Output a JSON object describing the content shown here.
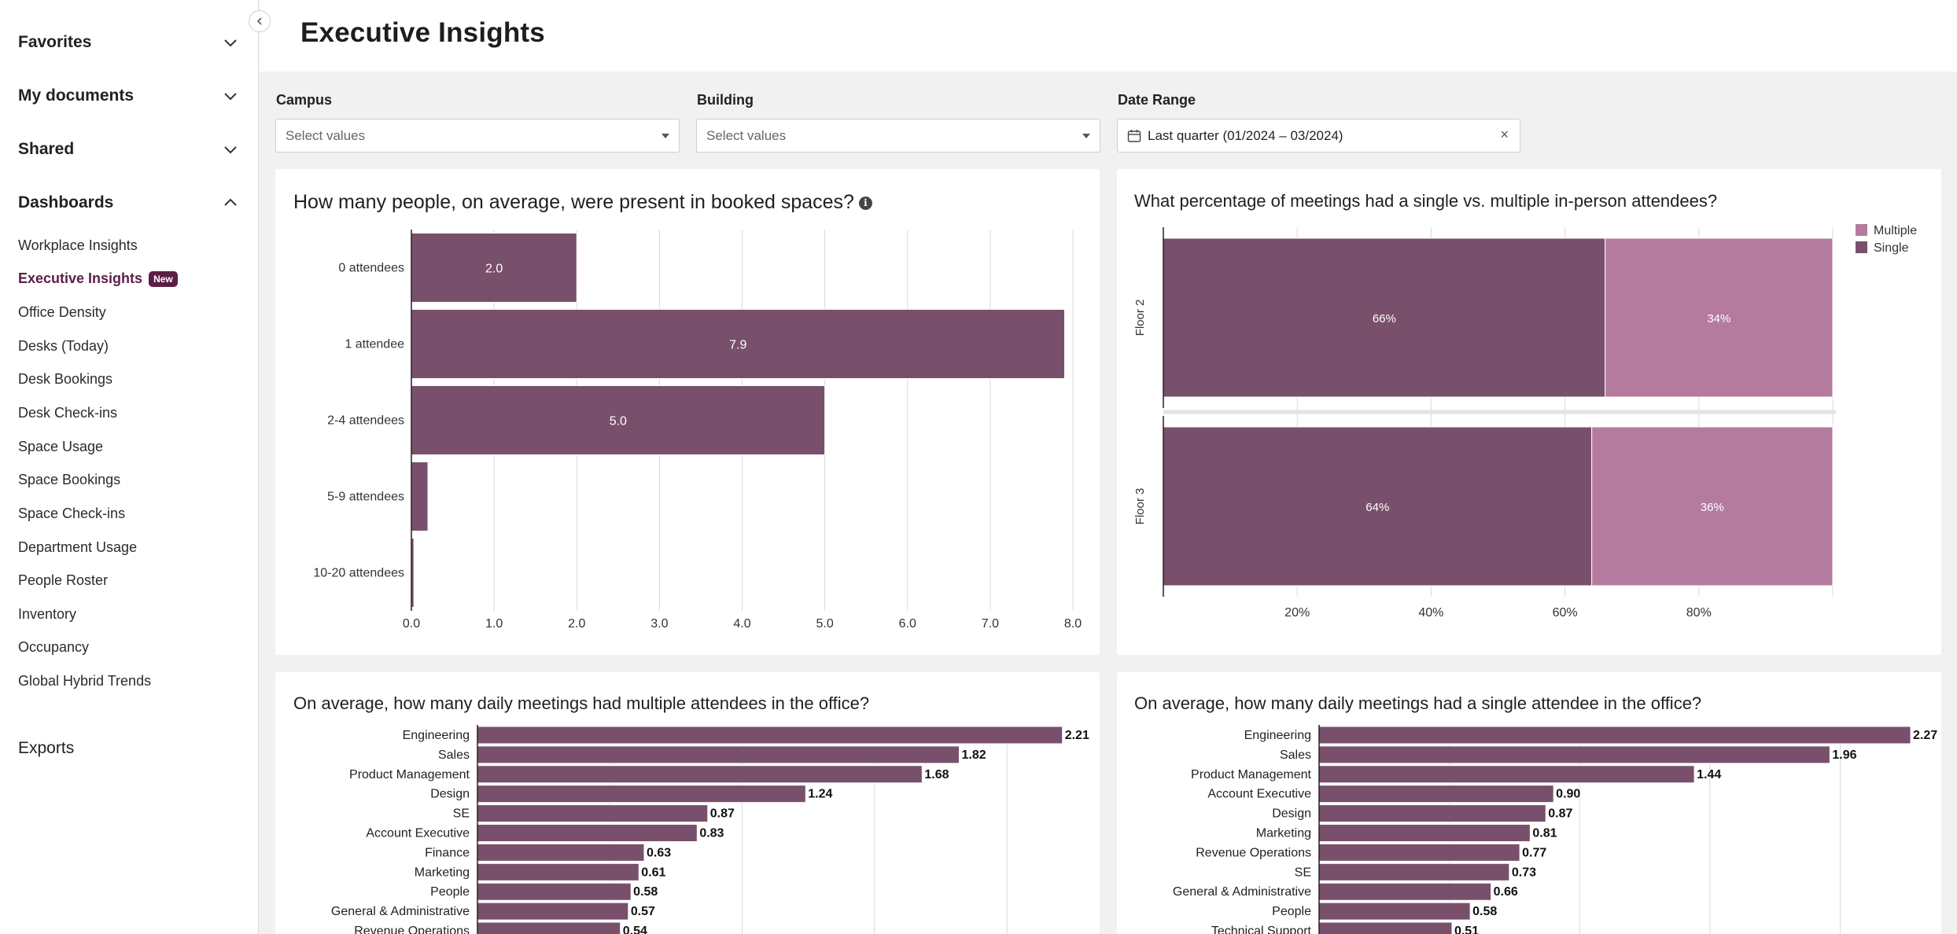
{
  "sidebar": {
    "sections": [
      {
        "label": "Favorites",
        "expanded": false
      },
      {
        "label": "My documents",
        "expanded": false
      },
      {
        "label": "Shared",
        "expanded": false
      },
      {
        "label": "Dashboards",
        "expanded": true
      }
    ],
    "items": [
      {
        "label": "Workplace Insights"
      },
      {
        "label": "Executive Insights",
        "badge": "New",
        "active": true
      },
      {
        "label": "Office Density"
      },
      {
        "label": "Desks (Today)"
      },
      {
        "label": "Desk Bookings"
      },
      {
        "label": "Desk Check-ins"
      },
      {
        "label": "Space Usage"
      },
      {
        "label": "Space Bookings"
      },
      {
        "label": "Space Check-ins"
      },
      {
        "label": "Department Usage"
      },
      {
        "label": "People Roster"
      },
      {
        "label": "Inventory"
      },
      {
        "label": "Occupancy"
      },
      {
        "label": "Global Hybrid Trends"
      }
    ],
    "exports_label": "Exports"
  },
  "header": {
    "title": "Executive Insights"
  },
  "filters": {
    "campus": {
      "label": "Campus",
      "placeholder": "Select values"
    },
    "building": {
      "label": "Building",
      "placeholder": "Select values"
    },
    "date_range": {
      "label": "Date Range",
      "value": "Last quarter (01/2024 – 03/2024)"
    }
  },
  "colors": {
    "bar": "#79506b",
    "bar_light": "#b47b9f",
    "grid": "#d9d9d9",
    "axis": "#222222"
  },
  "chart_data": [
    {
      "id": "attendees",
      "type": "bar",
      "orientation": "horizontal",
      "title": "How many people, on average, were present in booked spaces?",
      "categories": [
        "0 attendees",
        "1 attendee",
        "2-4 attendees",
        "5-9 attendees",
        "10-20 attendees"
      ],
      "values": [
        2.0,
        7.9,
        5.0,
        0.2,
        0.03
      ],
      "value_labels": [
        "2.0",
        "7.9",
        "5.0",
        "",
        ""
      ],
      "xlim": [
        0,
        8
      ],
      "ticks": [
        "0.0",
        "1.0",
        "2.0",
        "3.0",
        "4.0",
        "5.0",
        "6.0",
        "7.0",
        "8.0"
      ],
      "tick_values": [
        0,
        1,
        2,
        3,
        4,
        5,
        6,
        7,
        8
      ]
    },
    {
      "id": "single_vs_multiple",
      "type": "bar",
      "orientation": "horizontal",
      "stacked": true,
      "title": "What percentage of meetings had a single vs. multiple in-person attendees?",
      "categories": [
        "Floor 2",
        "Floor 3"
      ],
      "series": [
        {
          "name": "Single",
          "values": [
            66,
            64
          ],
          "labels": [
            "66%",
            "64%"
          ]
        },
        {
          "name": "Multiple",
          "values": [
            34,
            36
          ],
          "labels": [
            "34%",
            "36%"
          ]
        }
      ],
      "legend": [
        "Multiple",
        "Single"
      ],
      "legend_position": "top-right",
      "ticks": [
        "20%",
        "40%",
        "60%",
        "80%"
      ],
      "tick_values": [
        20,
        40,
        60,
        80
      ],
      "xlim": [
        0,
        100
      ]
    },
    {
      "id": "multi_attendee_meetings",
      "type": "bar",
      "orientation": "horizontal",
      "title": "On average, how many daily meetings had multiple attendees in the office?",
      "categories": [
        "Engineering",
        "Sales",
        "Product Management",
        "Design",
        "SE",
        "Account Executive",
        "Finance",
        "Marketing",
        "People",
        "General & Administrative",
        "Revenue Operations"
      ],
      "values": [
        2.21,
        1.82,
        1.68,
        1.24,
        0.87,
        0.83,
        0.63,
        0.61,
        0.58,
        0.57,
        0.54
      ],
      "value_labels": [
        "2.21",
        "1.82",
        "1.68",
        "1.24",
        "0.87",
        "0.83",
        "0.63",
        "0.61",
        "0.58",
        "0.57",
        "0.54"
      ],
      "xlim": [
        0,
        2.3
      ],
      "gridlines": [
        0.5,
        1.0,
        1.5,
        2.0
      ]
    },
    {
      "id": "single_attendee_meetings",
      "type": "bar",
      "orientation": "horizontal",
      "title": "On average, how many daily meetings had a single attendee in the office?",
      "categories": [
        "Engineering",
        "Sales",
        "Product Management",
        "Account Executive",
        "Design",
        "Marketing",
        "Revenue Operations",
        "SE",
        "General & Administrative",
        "People",
        "Technical Support"
      ],
      "values": [
        2.27,
        1.96,
        1.44,
        0.9,
        0.87,
        0.81,
        0.77,
        0.73,
        0.66,
        0.58,
        0.51
      ],
      "value_labels": [
        "2.27",
        "1.96",
        "1.44",
        "0.90",
        "0.87",
        "0.81",
        "0.77",
        "0.73",
        "0.66",
        "0.58",
        "0.51"
      ],
      "xlim": [
        0,
        2.3
      ],
      "gridlines": [
        0.5,
        1.0,
        1.5,
        2.0
      ]
    }
  ]
}
